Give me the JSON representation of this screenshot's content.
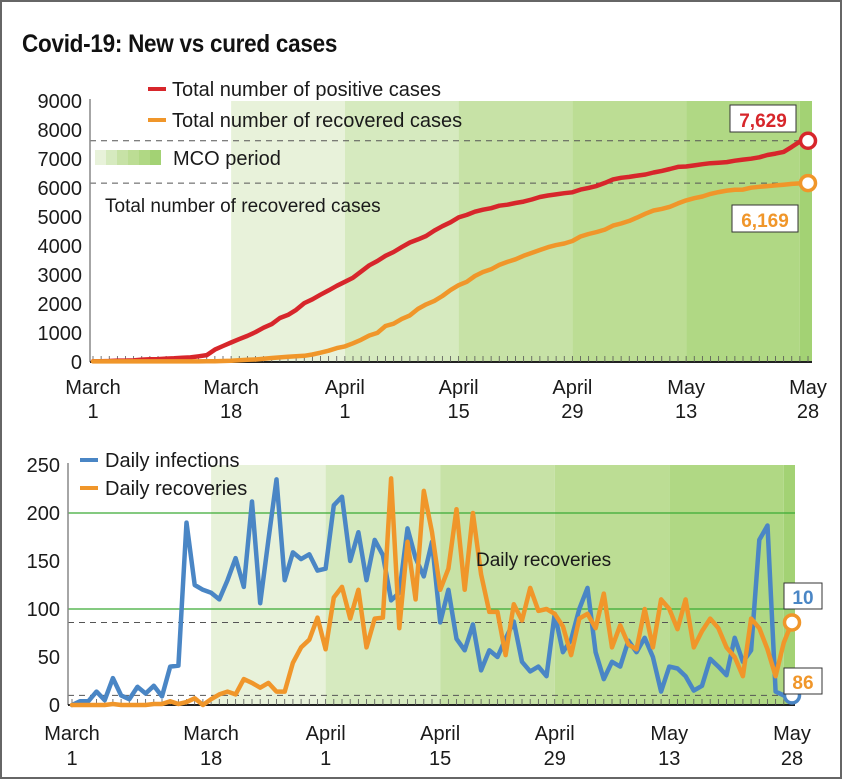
{
  "title": "Covid-19: New vs cured cases",
  "colors": {
    "positive": "#d7262b",
    "recovered": "#f0962a",
    "daily_infections": "#4a86c5",
    "daily_recoveries": "#f0962a",
    "mco_bands": [
      "#e8f2da",
      "#d6eabf",
      "#c7e2a6",
      "#bcdd94",
      "#b0d884",
      "#a3d274"
    ],
    "gridline_green": "#3aaa35",
    "dashed": "#555555"
  },
  "chart_data": [
    {
      "type": "line",
      "title": "Covid-19: New vs cured cases",
      "xlabel": "",
      "ylabel": "",
      "ylim": [
        0,
        9000
      ],
      "yticks": [
        "0",
        "1000",
        "2000",
        "3000",
        "4000",
        "5000",
        "6000",
        "7000",
        "8000",
        "9000"
      ],
      "ytick_values": [
        0,
        1000,
        2000,
        3000,
        4000,
        5000,
        6000,
        7000,
        8000,
        9000
      ],
      "xlim_days": [
        0,
        88
      ],
      "xticks": [
        {
          "day": 0,
          "line1": "March",
          "line2": "1"
        },
        {
          "day": 17,
          "line1": "March",
          "line2": "18"
        },
        {
          "day": 31,
          "line1": "April",
          "line2": "1"
        },
        {
          "day": 45,
          "line1": "April",
          "line2": "15"
        },
        {
          "day": 59,
          "line1": "April",
          "line2": "29"
        },
        {
          "day": 73,
          "line1": "May",
          "line2": "13"
        },
        {
          "day": 88,
          "line1": "May",
          "line2": "28"
        }
      ],
      "legend": {
        "placement": "top-left",
        "entries": [
          {
            "label": "Total number of positive cases",
            "key": "positive"
          },
          {
            "label": "Total number of recovered cases",
            "key": "recovered"
          },
          {
            "label": "MCO period",
            "key": "mco"
          }
        ]
      },
      "annotation": "Total number of recovered cases",
      "mco_phases_days": [
        17,
        31,
        45,
        59,
        73,
        87,
        89
      ],
      "series": [
        {
          "name": "Total number of positive cases",
          "key": "positive",
          "final_label": "7,629",
          "values": [
            29,
            29,
            36,
            50,
            50,
            55,
            83,
            93,
            99,
            117,
            129,
            149,
            158,
            197,
            238,
            428,
            553,
            673,
            790,
            900,
            1030,
            1183,
            1306,
            1518,
            1624,
            1796,
            2031,
            2161,
            2320,
            2470,
            2626,
            2766,
            2908,
            3116,
            3333,
            3483,
            3662,
            3793,
            3963,
            4119,
            4228,
            4346,
            4530,
            4683,
            4817,
            4987,
            5072,
            5182,
            5251,
            5305,
            5389,
            5425,
            5482,
            5532,
            5603,
            5691,
            5742,
            5780,
            5820,
            5851,
            5945,
            6002,
            6071,
            6176,
            6298,
            6353,
            6383,
            6428,
            6467,
            6535,
            6589,
            6656,
            6726,
            6742,
            6779,
            6819,
            6855,
            6872,
            6894,
            6941,
            6978,
            7009,
            7059,
            7137,
            7185,
            7245,
            7417,
            7604,
            7629
          ]
        },
        {
          "name": "Total number of recovered cases",
          "key": "recovered",
          "final_label": "6,169",
          "values": [
            22,
            22,
            22,
            22,
            22,
            22,
            22,
            22,
            22,
            22,
            22,
            22,
            22,
            22,
            26,
            27,
            35,
            42,
            60,
            75,
            87,
            114,
            139,
            159,
            183,
            199,
            215,
            259,
            320,
            388,
            479,
            537,
            645,
            767,
            915,
            1005,
            1241,
            1321,
            1487,
            1608,
            1830,
            1987,
            2108,
            2276,
            2478,
            2647,
            2766,
            2967,
            3103,
            3197,
            3349,
            3452,
            3542,
            3663,
            3762,
            3862,
            3957,
            4032,
            4087,
            4171,
            4326,
            4413,
            4484,
            4567,
            4702,
            4776,
            4864,
            4987,
            5113,
            5223,
            5281,
            5351,
            5468,
            5571,
            5647,
            5706,
            5796,
            5859,
            5912,
            5939,
            5945,
            6010,
            6042,
            6066,
            6088,
            6114,
            6143,
            6160,
            6169
          ]
        }
      ]
    },
    {
      "type": "line",
      "title": "",
      "xlabel": "",
      "ylabel": "",
      "ylim": [
        0,
        250
      ],
      "yticks": [
        "0",
        "50",
        "100",
        "150",
        "200",
        "250"
      ],
      "ytick_values": [
        0,
        50,
        100,
        150,
        200,
        250
      ],
      "green_gridlines": [
        100,
        200
      ],
      "dashed_reference_lines": [
        86,
        10
      ],
      "xlim_days": [
        0,
        88
      ],
      "xticks": [
        {
          "day": 0,
          "line1": "March",
          "line2": "1"
        },
        {
          "day": 17,
          "line1": "March",
          "line2": "18"
        },
        {
          "day": 31,
          "line1": "April",
          "line2": "1"
        },
        {
          "day": 45,
          "line1": "April",
          "line2": "15"
        },
        {
          "day": 59,
          "line1": "April",
          "line2": "29"
        },
        {
          "day": 73,
          "line1": "May",
          "line2": "13"
        },
        {
          "day": 88,
          "line1": "May",
          "line2": "28"
        }
      ],
      "legend": {
        "placement": "top-left",
        "entries": [
          {
            "label": "Daily infections",
            "key": "daily_infections"
          },
          {
            "label": "Daily recoveries",
            "key": "daily_recoveries"
          }
        ]
      },
      "annotation": "Daily recoveries",
      "mco_phases_days": [
        17,
        31,
        45,
        59,
        73,
        87,
        89
      ],
      "series": [
        {
          "name": "Daily infections",
          "key": "daily_infections",
          "final_label": "10",
          "values": [
            0,
            4,
            4,
            14,
            5,
            28,
            10,
            6,
            19,
            12,
            20,
            9,
            40,
            41,
            190,
            125,
            120,
            117,
            110,
            130,
            153,
            123,
            212,
            106,
            172,
            235,
            130,
            159,
            152,
            157,
            140,
            142,
            208,
            217,
            150,
            180,
            130,
            172,
            156,
            109,
            117,
            184,
            153,
            134,
            170,
            86,
            120,
            69,
            57,
            84,
            36,
            57,
            50,
            69,
            87,
            45,
            35,
            40,
            30,
            95,
            55,
            68,
            100,
            122,
            55,
            27,
            45,
            40,
            67,
            55,
            70,
            50,
            14,
            40,
            38,
            30,
            15,
            20,
            48,
            40,
            31,
            70,
            45,
            57,
            172,
            187,
            14,
            10,
            10
          ]
        },
        {
          "name": "Daily recoveries",
          "key": "daily_recoveries",
          "final_label": "86",
          "values": [
            0,
            0,
            0,
            0,
            0,
            1,
            0,
            0,
            0,
            0,
            1,
            1,
            4,
            1,
            3,
            7,
            0,
            6,
            11,
            14,
            11,
            27,
            23,
            18,
            23,
            14,
            14,
            44,
            60,
            68,
            91,
            58,
            112,
            123,
            90,
            120,
            60,
            90,
            91,
            236,
            80,
            170,
            110,
            223,
            180,
            120,
            142,
            204,
            120,
            200,
            136,
            97,
            97,
            52,
            105,
            88,
            122,
            98,
            100,
            95,
            82,
            52,
            90,
            95,
            80,
            116,
            60,
            83,
            63,
            58,
            100,
            60,
            110,
            100,
            79,
            110,
            60,
            77,
            90,
            80,
            60,
            50,
            30,
            90,
            80,
            58,
            30,
            65,
            86
          ]
        }
      ]
    }
  ]
}
